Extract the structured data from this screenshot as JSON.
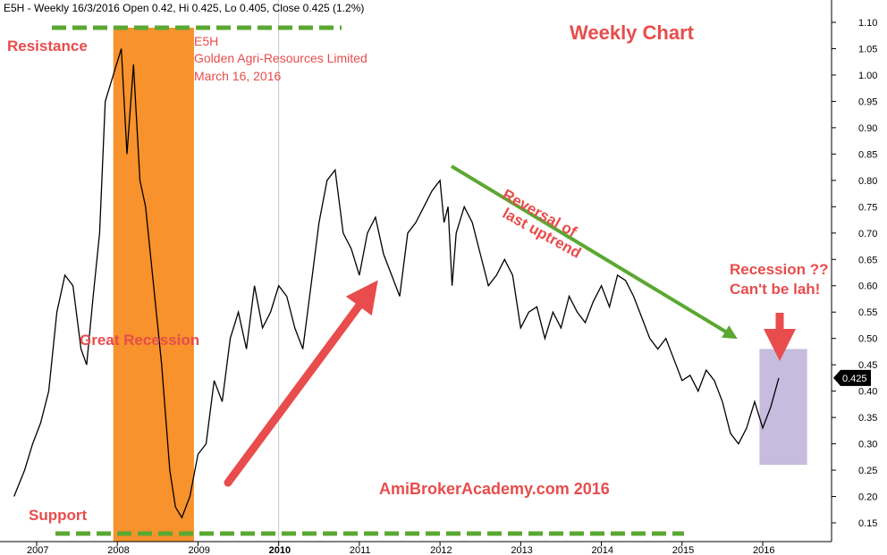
{
  "header": "E5H - Weekly 16/3/2016 Open 0.42, Hi 0.425, Lo 0.405, Close 0.425 (1.2%)",
  "title": "Weekly Chart",
  "annotations": {
    "resistance": "Resistance",
    "support": "Support",
    "ticker": "E5H",
    "company": "Golden Agri-Resources Limited",
    "date": "March 16, 2016",
    "great_recession": "Great Recession",
    "reversal_line1": "Reversal of",
    "reversal_line2": "last uptrend",
    "recession_line1": "Recession ??",
    "recession_line2": "Can't be lah!",
    "watermark": "AmiBrokerAcademy.com  2016"
  },
  "last_price_label": "0.425",
  "colors": {
    "price": "#000000",
    "recession_band": "#f7922c",
    "recession_box": "#bcb0d8",
    "dashed_level": "#5aa832",
    "up_arrow": "#e84c4c",
    "down_arrow": "#5aa832",
    "annotation_text": "#e84c4c"
  },
  "chart_data": {
    "type": "line",
    "ylim": [
      0.12,
      1.12
    ],
    "y_ticks": [
      0.15,
      0.2,
      0.25,
      0.3,
      0.35,
      0.4,
      0.45,
      0.5,
      0.55,
      0.6,
      0.65,
      0.7,
      0.75,
      0.8,
      0.85,
      0.9,
      0.95,
      1.0,
      1.05,
      1.1
    ],
    "y_tick_labels": [
      "0.15",
      "0.20",
      "0.25",
      "0.30",
      "0.35",
      "0.40",
      "0.45",
      "0.50",
      "0.55",
      "0.60",
      "0.65",
      "0.70",
      "0.75",
      "0.80",
      "0.85",
      "0.90",
      "0.95",
      "1.00",
      "1.05",
      "1.10"
    ],
    "x_range": [
      2006.7,
      2016.85
    ],
    "x_ticks": [
      2007,
      2008,
      2009,
      2010,
      2011,
      2012,
      2013,
      2014,
      2015,
      2016
    ],
    "x_tick_labels": [
      "2007",
      "2008",
      "2009",
      "2010",
      "2011",
      "2012",
      "2013",
      "2014",
      "2015",
      "2016"
    ],
    "series": [
      {
        "x": [
          2006.72,
          2006.85,
          2006.95,
          2007.05,
          2007.15,
          2007.25,
          2007.35,
          2007.45,
          2007.55,
          2007.62,
          2007.7,
          2007.78,
          2007.85,
          2007.95,
          2008.05,
          2008.12,
          2008.2,
          2008.28,
          2008.35,
          2008.45,
          2008.55,
          2008.65,
          2008.72,
          2008.8,
          2008.9,
          2009.0,
          2009.1,
          2009.2,
          2009.3,
          2009.4,
          2009.5,
          2009.6,
          2009.7,
          2009.8,
          2009.9,
          2010.0,
          2010.1,
          2010.2,
          2010.3,
          2010.4,
          2010.5,
          2010.6,
          2010.7,
          2010.8,
          2010.9,
          2011.0,
          2011.1,
          2011.2,
          2011.3,
          2011.4,
          2011.5,
          2011.6,
          2011.7,
          2011.8,
          2011.9,
          2012.0,
          2012.05,
          2012.1,
          2012.15,
          2012.2,
          2012.3,
          2012.4,
          2012.5,
          2012.6,
          2012.7,
          2012.8,
          2012.9,
          2013.0,
          2013.1,
          2013.2,
          2013.3,
          2013.4,
          2013.5,
          2013.6,
          2013.7,
          2013.8,
          2013.9,
          2014.0,
          2014.1,
          2014.2,
          2014.3,
          2014.4,
          2014.5,
          2014.6,
          2014.7,
          2014.8,
          2014.9,
          2015.0,
          2015.1,
          2015.2,
          2015.3,
          2015.4,
          2015.5,
          2015.6,
          2015.7,
          2015.8,
          2015.9,
          2016.0,
          2016.1,
          2016.2
        ],
        "y": [
          0.2,
          0.25,
          0.3,
          0.34,
          0.4,
          0.55,
          0.62,
          0.6,
          0.48,
          0.45,
          0.58,
          0.7,
          0.95,
          1.0,
          1.05,
          0.85,
          1.02,
          0.8,
          0.75,
          0.6,
          0.45,
          0.25,
          0.18,
          0.16,
          0.2,
          0.28,
          0.3,
          0.42,
          0.38,
          0.5,
          0.55,
          0.48,
          0.6,
          0.52,
          0.55,
          0.6,
          0.58,
          0.52,
          0.48,
          0.6,
          0.72,
          0.8,
          0.82,
          0.7,
          0.67,
          0.62,
          0.7,
          0.73,
          0.66,
          0.62,
          0.58,
          0.7,
          0.72,
          0.75,
          0.78,
          0.8,
          0.72,
          0.75,
          0.6,
          0.7,
          0.75,
          0.72,
          0.66,
          0.6,
          0.62,
          0.65,
          0.62,
          0.52,
          0.55,
          0.56,
          0.5,
          0.55,
          0.52,
          0.58,
          0.55,
          0.53,
          0.57,
          0.6,
          0.56,
          0.62,
          0.61,
          0.58,
          0.54,
          0.5,
          0.48,
          0.5,
          0.46,
          0.42,
          0.43,
          0.4,
          0.44,
          0.42,
          0.38,
          0.32,
          0.3,
          0.33,
          0.38,
          0.33,
          0.37,
          0.425
        ]
      }
    ]
  }
}
